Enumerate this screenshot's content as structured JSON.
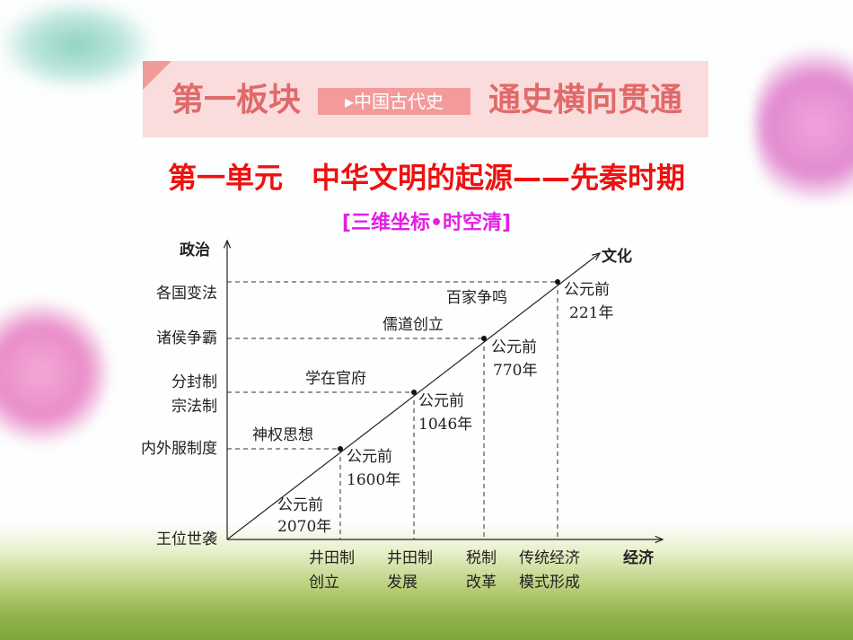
{
  "banner": {
    "left": "第一板块",
    "tag": "中国古代史",
    "right": "通史横向贯通"
  },
  "title": "第一单元　中华文明的起源——先秦时期",
  "subtitle": "[三维坐标•时空清]",
  "diagram": {
    "axes": {
      "politics": "政治",
      "economy": "经济",
      "culture": "文化"
    },
    "politics_labels": [
      "王位世袭",
      "内外服制度",
      "分封制",
      "宗法制",
      "诸侯争霸",
      "各国变法"
    ],
    "economy_labels": [
      [
        "井田制",
        "创立"
      ],
      [
        "井田制",
        "发展"
      ],
      [
        "税制",
        "改革"
      ],
      [
        "传统经济",
        "模式形成"
      ]
    ],
    "culture_labels": [
      "神权思想",
      "学在官府",
      "儒道创立",
      "百家争鸣"
    ],
    "dates": [
      [
        "公元前",
        "2070年"
      ],
      [
        "公元前",
        "1600年"
      ],
      [
        "公元前",
        "1046年"
      ],
      [
        "公元前",
        "770年"
      ],
      [
        "公元前",
        "221年"
      ]
    ]
  }
}
